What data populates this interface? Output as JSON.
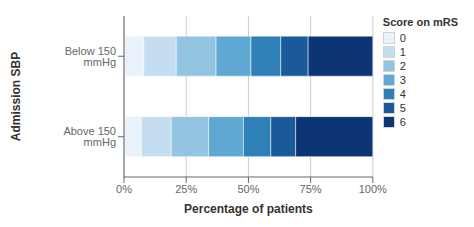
{
  "chart_data": {
    "type": "bar",
    "orientation": "horizontal",
    "stacked": true,
    "categories": [
      "Below 150 mmHg",
      "Above 150 mmHg"
    ],
    "series": [
      {
        "name": "0",
        "color": "#eaf2fb",
        "values": [
          0.08,
          0.07
        ]
      },
      {
        "name": "1",
        "color": "#c5ddf0",
        "values": [
          0.13,
          0.12
        ]
      },
      {
        "name": "2",
        "color": "#93c4e2",
        "values": [
          0.16,
          0.15
        ]
      },
      {
        "name": "3",
        "color": "#5fa8d3",
        "values": [
          0.14,
          0.14
        ]
      },
      {
        "name": "4",
        "color": "#3080b8",
        "values": [
          0.12,
          0.11
        ]
      },
      {
        "name": "5",
        "color": "#1a5a9a",
        "values": [
          0.11,
          0.1
        ]
      },
      {
        "name": "6",
        "color": "#0d3575",
        "values": [
          0.26,
          0.31
        ]
      }
    ],
    "xlabel": "Percentage of patients",
    "ylabel": "Admission SBP",
    "legend_title": "Score on mRS",
    "legend": "right",
    "xlim": [
      0,
      1.0
    ],
    "xticks": [
      {
        "value": 0,
        "label": "0%"
      },
      {
        "value": 0.25,
        "label": "25%"
      },
      {
        "value": 0.5,
        "label": "50%"
      },
      {
        "value": 0.75,
        "label": "75%"
      },
      {
        "value": 1.0,
        "label": "100%"
      }
    ],
    "grid": "x"
  }
}
